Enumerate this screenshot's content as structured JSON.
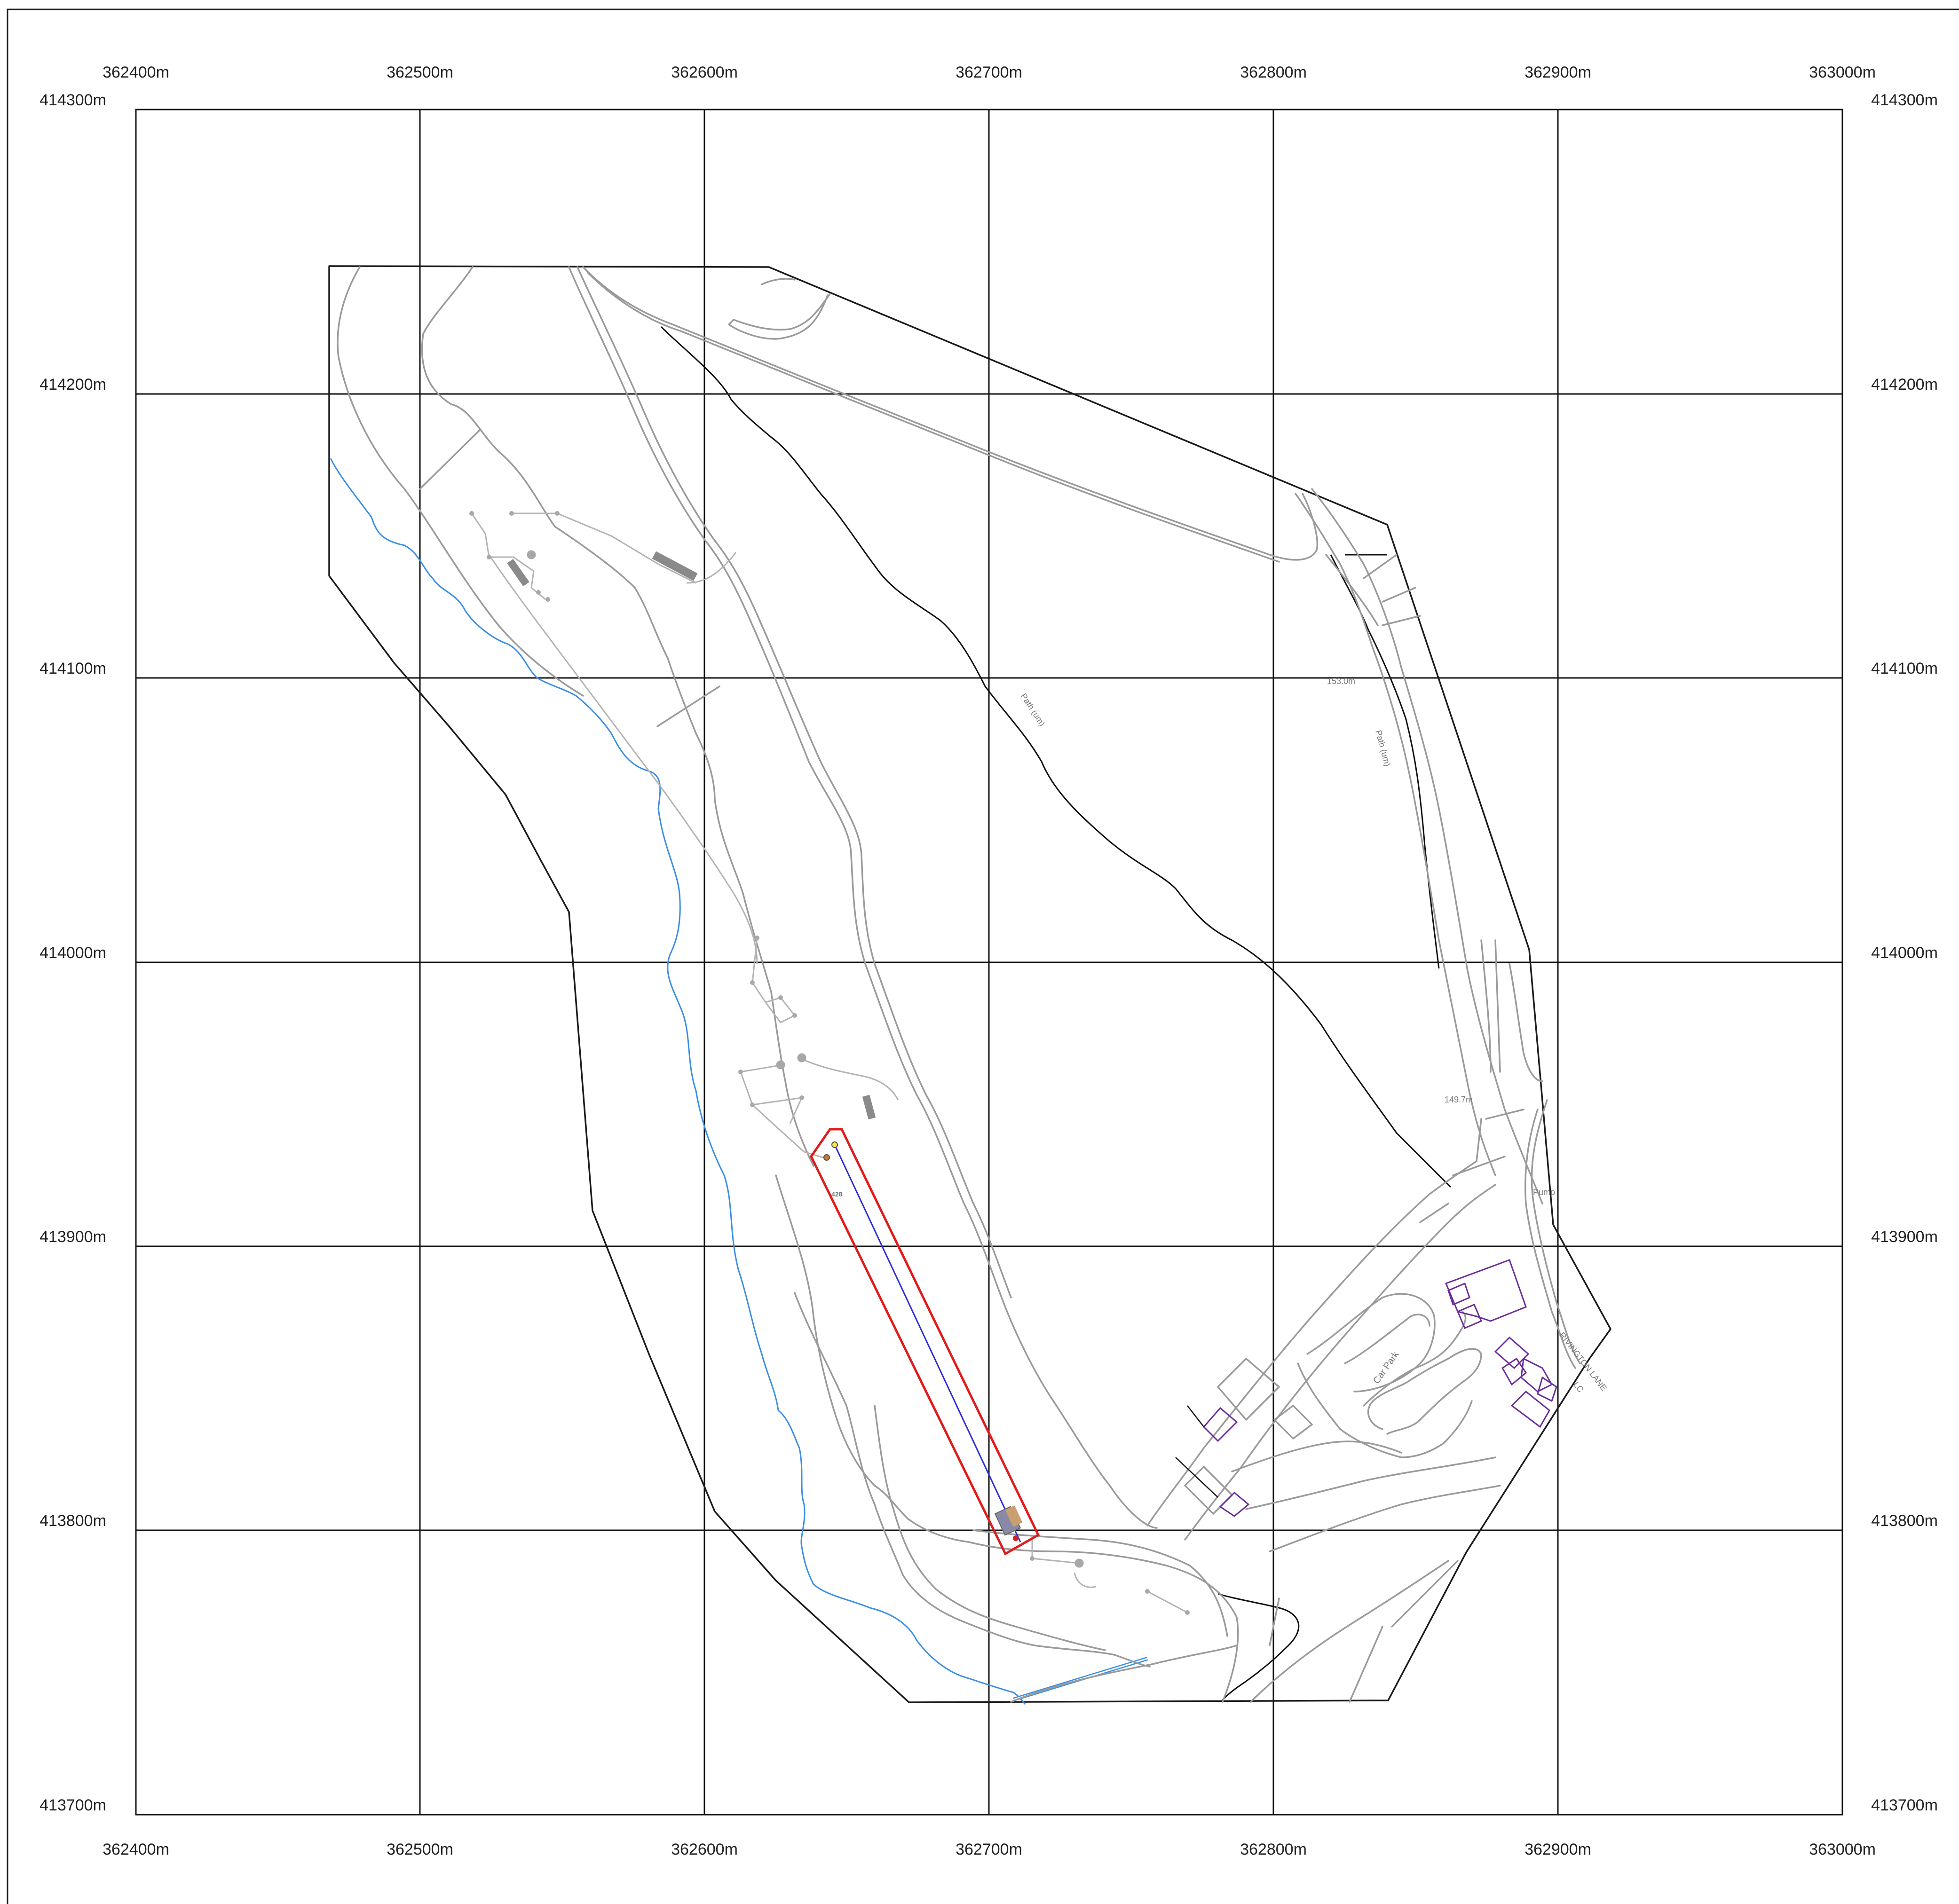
{
  "map": {
    "easting_labels": [
      "362400m",
      "362500m",
      "362600m",
      "362700m",
      "362800m",
      "362900m",
      "363000m"
    ],
    "northing_labels": [
      "414300m",
      "414200m",
      "414100m",
      "414000m",
      "413900m",
      "413800m",
      "413700m"
    ],
    "feature_labels": {
      "path_um_1": "Path (um)",
      "path_um_2": "Path (um)",
      "spot_height_1": "153.0m",
      "spot_height_2": "149.7m",
      "pump": "Pump",
      "car_park": "Car Park",
      "road_name": "RIVINGTON LANE",
      "lc": "LC",
      "survey_point_428": "428"
    },
    "colors": {
      "site_boundary": "#e11b1b",
      "survey_line": "#2b2bd9",
      "stream": "#3a8ee6",
      "buildings": "#6a2c9a",
      "roads": "#9a9a9a"
    }
  }
}
